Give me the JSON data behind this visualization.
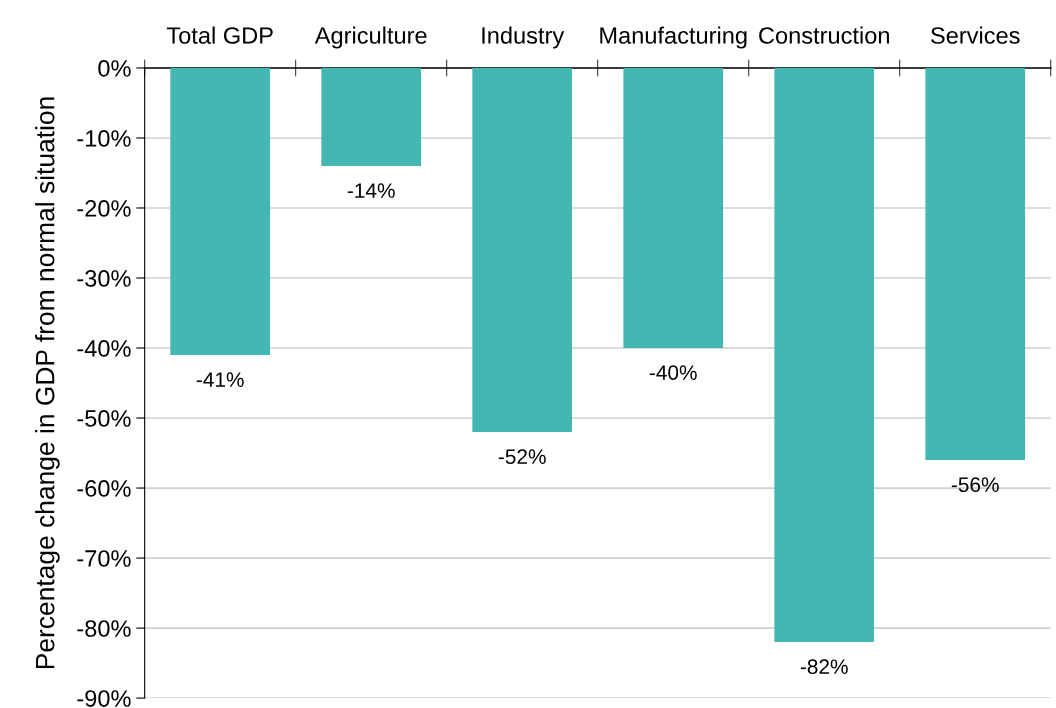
{
  "chart_data": {
    "type": "bar",
    "categories": [
      "Total GDP",
      "Agriculture",
      "Industry",
      "Manufacturing",
      "Construction",
      "Services"
    ],
    "values": [
      -41,
      -14,
      -52,
      -40,
      -82,
      -56
    ],
    "value_labels": [
      "-41%",
      "-14%",
      "-52%",
      "-40%",
      "-82%",
      "-56%"
    ],
    "color": "#43b7b2",
    "ylabel": "Percentage change in GDP from normal situation",
    "ylim": [
      -90,
      0
    ],
    "yticks": [
      {
        "value": 0,
        "label": "0%"
      },
      {
        "value": -10,
        "label": "-10%"
      },
      {
        "value": -20,
        "label": "-20%"
      },
      {
        "value": -30,
        "label": "-30%"
      },
      {
        "value": -40,
        "label": "-40%"
      },
      {
        "value": -50,
        "label": "-50%"
      },
      {
        "value": -60,
        "label": "-60%"
      },
      {
        "value": -70,
        "label": "-70%"
      },
      {
        "value": -80,
        "label": "-80%"
      },
      {
        "value": -90,
        "label": "-90%"
      }
    ],
    "grid": "y",
    "legend": false
  }
}
